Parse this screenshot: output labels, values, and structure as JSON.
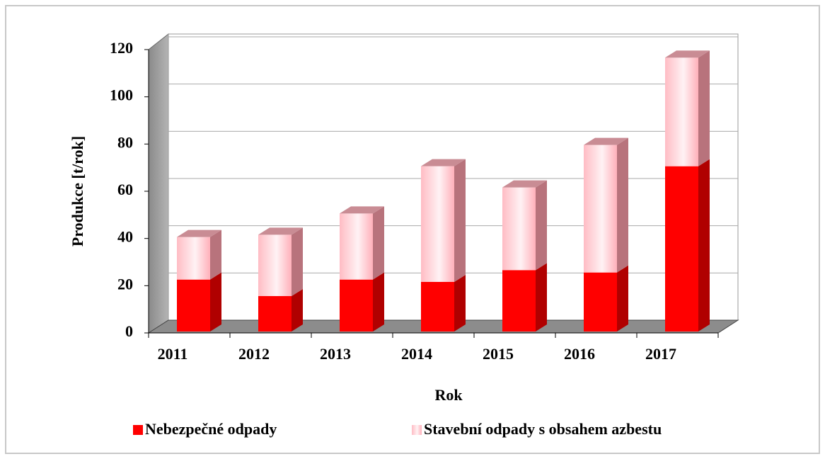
{
  "chart_data": {
    "type": "bar3d_stacked",
    "x_label": "Rok",
    "y_label": "Produkce [t/rok]",
    "categories": [
      "2011",
      "2012",
      "2013",
      "2014",
      "2015",
      "2016",
      "2017"
    ],
    "series": [
      {
        "name": "Nebezpečné odpady",
        "color": "#ff0000",
        "values": [
          22,
          15,
          22,
          21,
          26,
          25,
          70
        ]
      },
      {
        "name": "Stavební odpady s obsahem azbestu",
        "color": "#ffc4cc",
        "values": [
          18,
          26,
          28,
          49,
          35,
          54,
          46
        ]
      }
    ],
    "ylim": [
      0,
      120
    ],
    "yticks": [
      0,
      20,
      40,
      60,
      80,
      100,
      120
    ],
    "grid": true
  }
}
